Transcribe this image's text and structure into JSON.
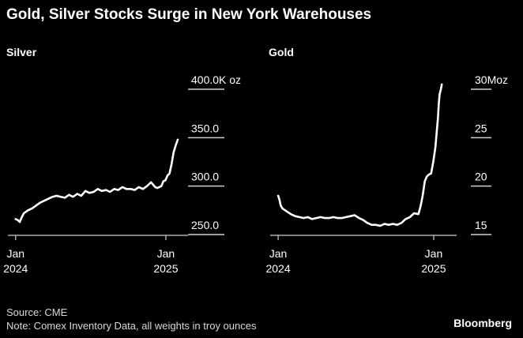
{
  "title": "Gold, Silver Stocks Surge in New York Warehouses",
  "footer": {
    "source": "Source: CME",
    "note": "Note: Comex Inventory Data, all weights in troy ounces",
    "brand": "Bloomberg"
  },
  "colors": {
    "background": "#000000",
    "line": "#ffffff",
    "text": "#ffffff"
  },
  "chart_data": [
    {
      "type": "line",
      "title": "Silver",
      "unit": "K oz",
      "grid": false,
      "ylim": [
        250,
        400
      ],
      "yticks": [
        {
          "value": 400,
          "label": "400.0K oz"
        },
        {
          "value": 350,
          "label": "350.0"
        },
        {
          "value": 300,
          "label": "300.0"
        },
        {
          "value": 250,
          "label": "250.0"
        }
      ],
      "xticks": [
        {
          "x": 0,
          "label": [
            "Jan",
            "2024"
          ]
        },
        {
          "x": 366,
          "label": [
            "Jan",
            "2025"
          ]
        }
      ],
      "xlim": [
        -15,
        420
      ],
      "series": [
        {
          "x": [
            0,
            5,
            10,
            15,
            20,
            30,
            40,
            50,
            60,
            70,
            80,
            90,
            100,
            110,
            120,
            130,
            140,
            150,
            160,
            170,
            180,
            190,
            200,
            210,
            220,
            230,
            240,
            250,
            260,
            270,
            280,
            290,
            300,
            310,
            320,
            330,
            340,
            345,
            350,
            355,
            360,
            365,
            370,
            375,
            380,
            385,
            390,
            395
          ],
          "values": [
            266,
            265,
            263,
            268,
            272,
            275,
            277,
            280,
            283,
            285,
            287,
            289,
            290,
            289,
            288,
            291,
            289,
            292,
            290,
            295,
            293,
            294,
            297,
            295,
            296,
            294,
            297,
            296,
            299,
            297,
            297,
            296,
            299,
            297,
            300,
            304,
            299,
            298,
            299,
            300,
            305,
            306,
            311,
            313,
            323,
            335,
            342,
            348
          ]
        }
      ]
    },
    {
      "type": "line",
      "title": "Gold",
      "unit": "Moz",
      "grid": false,
      "ylim": [
        15,
        30
      ],
      "yticks": [
        {
          "value": 30,
          "label": "30Moz"
        },
        {
          "value": 25,
          "label": "25"
        },
        {
          "value": 20,
          "label": "20"
        },
        {
          "value": 15,
          "label": "15"
        }
      ],
      "xticks": [
        {
          "x": 0,
          "label": [
            "Jan",
            "2024"
          ]
        },
        {
          "x": 366,
          "label": [
            "Jan",
            "2025"
          ]
        }
      ],
      "xlim": [
        -15,
        420
      ],
      "series": [
        {
          "x": [
            0,
            3,
            6,
            10,
            20,
            30,
            40,
            50,
            60,
            70,
            80,
            90,
            100,
            110,
            120,
            130,
            140,
            150,
            160,
            170,
            180,
            190,
            200,
            210,
            220,
            230,
            240,
            250,
            260,
            270,
            280,
            290,
            300,
            310,
            320,
            330,
            335,
            340,
            345,
            350,
            355,
            360,
            365,
            370,
            373,
            376,
            378,
            380,
            383,
            385
          ],
          "values": [
            19.0,
            18.6,
            18.0,
            17.7,
            17.4,
            17.1,
            16.9,
            16.8,
            16.7,
            16.8,
            16.6,
            16.7,
            16.8,
            16.7,
            16.7,
            16.8,
            16.7,
            16.7,
            16.8,
            16.9,
            17.0,
            16.7,
            16.5,
            16.2,
            16.0,
            16.0,
            15.9,
            16.1,
            16.0,
            16.1,
            16.0,
            16.2,
            16.6,
            16.8,
            17.2,
            17.1,
            17.9,
            19.0,
            20.5,
            21.0,
            21.2,
            21.3,
            22.5,
            24.0,
            25.5,
            27.0,
            28.5,
            29.5,
            30.0,
            30.5
          ]
        }
      ]
    }
  ]
}
